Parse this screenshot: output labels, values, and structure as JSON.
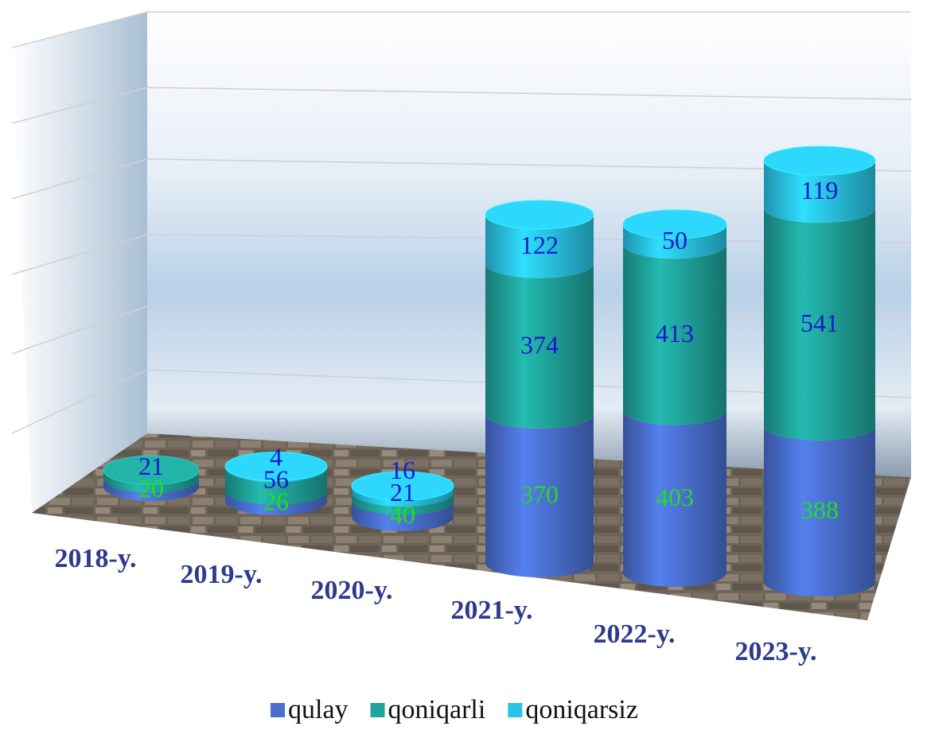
{
  "chart_data": {
    "type": "cylinder-stacked",
    "categories": [
      "2018-y.",
      "2019-y.",
      "2020-y.",
      "2021-y.",
      "2022-y.",
      "2023-y."
    ],
    "series": [
      {
        "name": "qulay",
        "color": "#4a6fd0",
        "values": [
          20,
          26,
          40,
          370,
          403,
          388
        ]
      },
      {
        "name": "qoniqarli",
        "color": "#1fa39a",
        "values": [
          21,
          56,
          21,
          374,
          413,
          541
        ]
      },
      {
        "name": "qoniqarsiz",
        "color": "#29c3e6",
        "values": [
          null,
          4,
          16,
          122,
          50,
          119
        ]
      }
    ],
    "legend": "bottom"
  }
}
